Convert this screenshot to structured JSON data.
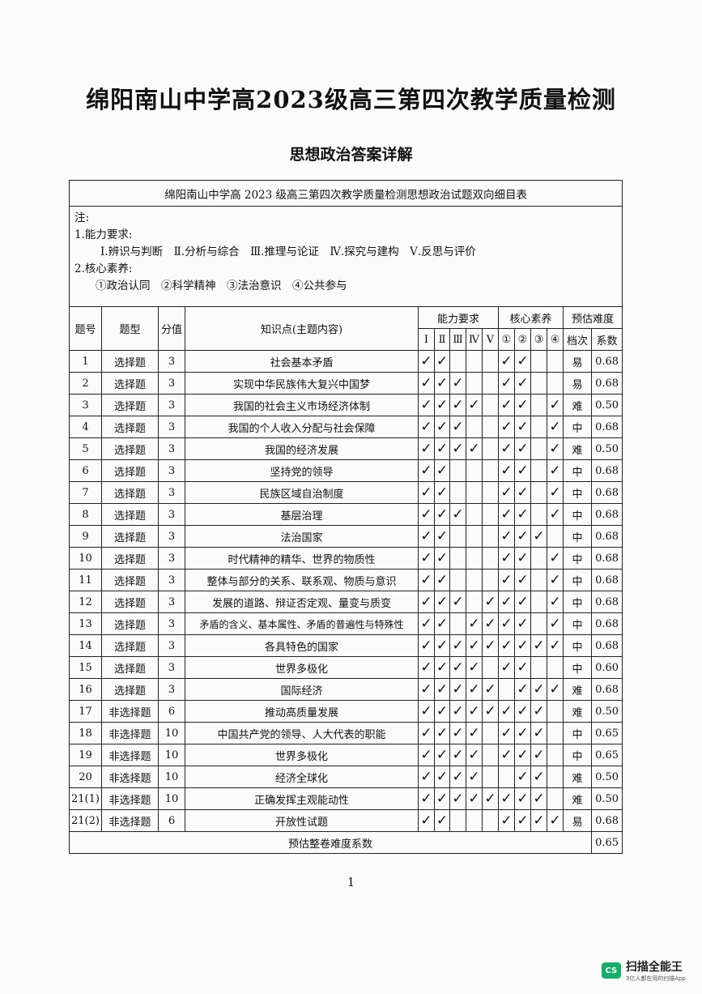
{
  "title": "绵阳南山中学高2023级高三第四次教学质量检测",
  "subtitle": "思想政治答案详解",
  "table": {
    "caption": "绵阳南山中学高 2023 级高三第四次教学质量检测思想政治试题双向细目表",
    "notes": [
      "注:",
      "1.能力要求:",
      "Ⅰ.辨识与判断　Ⅱ.分析与综合　Ⅲ.推理与论证　Ⅳ.探究与建构　Ⅴ.反思与评价",
      "2.核心素养:",
      "①政治认同　②科学精神　③法治意识　④公共参与"
    ],
    "headers": {
      "num": "题号",
      "type": "题型",
      "score": "分值",
      "topic": "知识点(主题内容)",
      "ability": "能力要求",
      "literacy": "核心素养",
      "difficulty": "预估难度",
      "ability_cols": [
        "Ⅰ",
        "Ⅱ",
        "Ⅲ",
        "Ⅳ",
        "Ⅴ"
      ],
      "literacy_cols": [
        "①",
        "②",
        "③",
        "④"
      ],
      "level": "档次",
      "coef": "系数"
    },
    "check_mark": "✓",
    "rows": [
      {
        "num": "1",
        "type": "选择题",
        "score": "3",
        "topic": "社会基本矛盾",
        "ability": "11000",
        "literacy": "1100",
        "level": "易",
        "coef": "0.68"
      },
      {
        "num": "2",
        "type": "选择题",
        "score": "3",
        "topic": "实现中华民族伟大复兴中国梦",
        "ability": "11100",
        "literacy": "1100",
        "level": "易",
        "coef": "0.68"
      },
      {
        "num": "3",
        "type": "选择题",
        "score": "3",
        "topic": "我国的社会主义市场经济体制",
        "ability": "11110",
        "literacy": "1101",
        "level": "难",
        "coef": "0.50"
      },
      {
        "num": "4",
        "type": "选择题",
        "score": "3",
        "topic": "我国的个人收入分配与社会保障",
        "ability": "11100",
        "literacy": "1101",
        "level": "中",
        "coef": "0.68"
      },
      {
        "num": "5",
        "type": "选择题",
        "score": "3",
        "topic": "我国的经济发展",
        "ability": "11110",
        "literacy": "1101",
        "level": "难",
        "coef": "0.50"
      },
      {
        "num": "6",
        "type": "选择题",
        "score": "3",
        "topic": "坚持党的领导",
        "ability": "11000",
        "literacy": "1101",
        "level": "中",
        "coef": "0.68"
      },
      {
        "num": "7",
        "type": "选择题",
        "score": "3",
        "topic": "民族区域自治制度",
        "ability": "11000",
        "literacy": "1101",
        "level": "中",
        "coef": "0.68"
      },
      {
        "num": "8",
        "type": "选择题",
        "score": "3",
        "topic": "基层治理",
        "ability": "11100",
        "literacy": "1101",
        "level": "中",
        "coef": "0.68"
      },
      {
        "num": "9",
        "type": "选择题",
        "score": "3",
        "topic": "法治国家",
        "ability": "11000",
        "literacy": "1110",
        "level": "中",
        "coef": "0.68"
      },
      {
        "num": "10",
        "type": "选择题",
        "score": "3",
        "topic": "时代精神的精华、世界的物质性",
        "ability": "11000",
        "literacy": "1101",
        "level": "中",
        "coef": "0.68"
      },
      {
        "num": "11",
        "type": "选择题",
        "score": "3",
        "topic": "整体与部分的关系、联系观、物质与意识",
        "ability": "11000",
        "literacy": "1101",
        "level": "中",
        "coef": "0.68"
      },
      {
        "num": "12",
        "type": "选择题",
        "score": "3",
        "topic": "发展的道路、辩证否定观、量变与质变",
        "ability": "11101",
        "literacy": "1101",
        "level": "中",
        "coef": "0.68"
      },
      {
        "num": "13",
        "type": "选择题",
        "score": "3",
        "topic": "矛盾的含义、基本属性、矛盾的普遍性与特殊性",
        "ability": "11011",
        "literacy": "1101",
        "level": "中",
        "coef": "0.68"
      },
      {
        "num": "14",
        "type": "选择题",
        "score": "3",
        "topic": "各具特色的国家",
        "ability": "11111",
        "literacy": "1111",
        "level": "中",
        "coef": "0.68"
      },
      {
        "num": "15",
        "type": "选择题",
        "score": "3",
        "topic": "世界多极化",
        "ability": "11110",
        "literacy": "1100",
        "level": "中",
        "coef": "0.60"
      },
      {
        "num": "16",
        "type": "选择题",
        "score": "3",
        "topic": "国际经济",
        "ability": "11111",
        "literacy": "0111",
        "level": "难",
        "coef": "0.68"
      },
      {
        "num": "17",
        "type": "非选择题",
        "score": "6",
        "topic": "推动高质量发展",
        "ability": "11111",
        "literacy": "1110",
        "level": "难",
        "coef": "0.50"
      },
      {
        "num": "18",
        "type": "非选择题",
        "score": "10",
        "topic": "中国共产党的领导、人大代表的职能",
        "ability": "11110",
        "literacy": "1110",
        "level": "中",
        "coef": "0.65"
      },
      {
        "num": "19",
        "type": "非选择题",
        "score": "10",
        "topic": "世界多极化",
        "ability": "11110",
        "literacy": "1110",
        "level": "中",
        "coef": "0.65"
      },
      {
        "num": "20",
        "type": "非选择题",
        "score": "10",
        "topic": "经济全球化",
        "ability": "11110",
        "literacy": "0110",
        "level": "难",
        "coef": "0.50"
      },
      {
        "num": "21(1)",
        "type": "非选择题",
        "score": "10",
        "topic": "正确发挥主观能动性",
        "ability": "11111",
        "literacy": "1110",
        "level": "难",
        "coef": "0.50"
      },
      {
        "num": "21(2)",
        "type": "非选择题",
        "score": "6",
        "topic": "开放性试题",
        "ability": "11000",
        "literacy": "1111",
        "level": "易",
        "coef": "0.68"
      }
    ],
    "footer": {
      "label": "预估整卷难度系数",
      "coef": "0.65"
    }
  },
  "page_number": "1",
  "watermark": {
    "logo": "CS",
    "name": "扫描全能王",
    "tagline": "3亿人都在用的扫描App",
    "color": "#1bab6b"
  }
}
